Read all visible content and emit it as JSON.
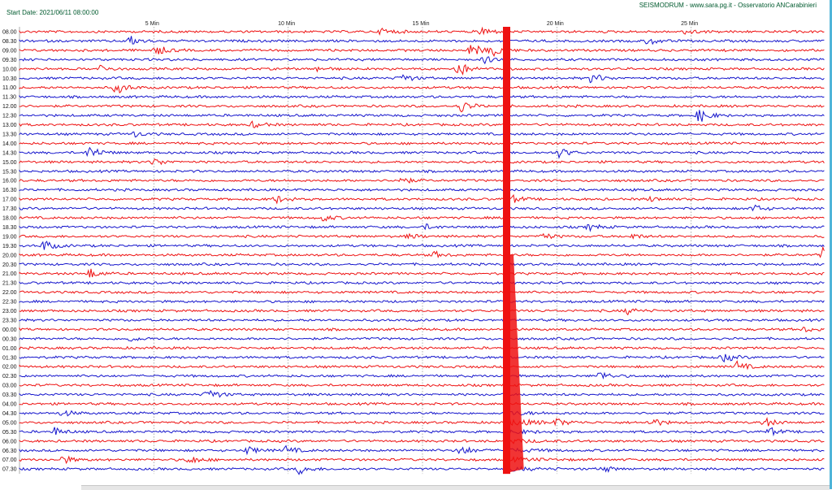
{
  "header": {
    "start_date": "Start Date: 2021/06/11 08:00:00",
    "source": "SEISMODRUM - www.sara.pg.it - Osservatorio ANCarabinieri"
  },
  "colors": {
    "red": "#ee1111",
    "blue": "#1515cc",
    "grid": "#8a8a8a"
  },
  "chart_data": {
    "type": "line",
    "xlim": [
      0,
      30
    ],
    "x_ticks": [
      {
        "value": 5,
        "label": "5 Min"
      },
      {
        "value": 10,
        "label": "10 Min"
      },
      {
        "value": 15,
        "label": "15 Min"
      },
      {
        "value": 20,
        "label": "20 Min"
      },
      {
        "value": 25,
        "label": "25 Min"
      }
    ],
    "rows": [
      "08.00",
      "08.30",
      "09.00",
      "09.30",
      "10.00",
      "10.30",
      "11.00",
      "11.30",
      "12.00",
      "12.30",
      "13.00",
      "13.30",
      "14.00",
      "14.30",
      "15.00",
      "15.30",
      "16.00",
      "16.30",
      "17.00",
      "17.30",
      "18.00",
      "18.30",
      "19.00",
      "19.30",
      "20.00",
      "20.30",
      "21.00",
      "21.30",
      "22.00",
      "22.30",
      "23.00",
      "23.30",
      "00.00",
      "00.30",
      "01.00",
      "01.30",
      "02.00",
      "02.30",
      "03.00",
      "03.30",
      "04.00",
      "04.30",
      "05.00",
      "05.30",
      "06.00",
      "06.30",
      "07.00",
      "07.30"
    ],
    "row_colors": [
      "red",
      "blue"
    ],
    "major_event": {
      "minute": 18.1,
      "start_row": 0,
      "end_row": 47
    }
  }
}
